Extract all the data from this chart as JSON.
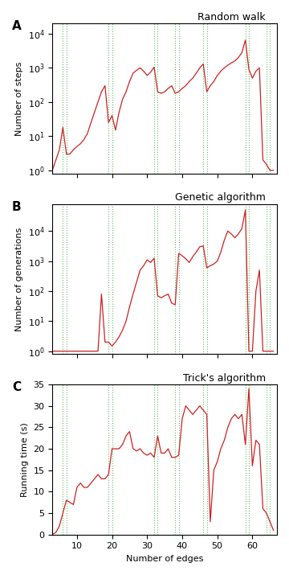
{
  "title_A": "Random walk",
  "title_B": "Genetic algorithm",
  "title_C": "Trick's algorithm",
  "ylabel_A": "Number of steps",
  "ylabel_B": "Number of generations",
  "ylabel_C": "Running time (s)",
  "xlabel": "Number of edges",
  "panel_labels": [
    "A",
    "B",
    "C"
  ],
  "xlim": [
    3,
    67
  ],
  "xticks": [
    10,
    20,
    30,
    40,
    50,
    60
  ],
  "vlines": [
    6,
    7,
    19,
    20,
    32,
    33,
    38,
    39,
    46,
    47,
    58,
    59,
    64,
    65
  ],
  "vline_color": "#66bb66",
  "line_color": "#cc2222",
  "background_color": "#ffffff",
  "ylim_A": [
    0.8,
    20000
  ],
  "ylim_B": [
    0.8,
    80000
  ],
  "ylim_C": [
    0,
    35
  ],
  "yticks_C": [
    0,
    5,
    10,
    15,
    20,
    25,
    30,
    35
  ],
  "rw_x": [
    3,
    4,
    5,
    6,
    7,
    8,
    9,
    10,
    11,
    12,
    13,
    14,
    15,
    16,
    17,
    18,
    19,
    20,
    21,
    22,
    23,
    24,
    25,
    26,
    27,
    28,
    29,
    30,
    31,
    32,
    33,
    34,
    35,
    36,
    37,
    38,
    39,
    40,
    41,
    42,
    43,
    44,
    45,
    46,
    47,
    48,
    49,
    50,
    51,
    52,
    53,
    54,
    55,
    56,
    57,
    58,
    59,
    60,
    61,
    62,
    63,
    64,
    65,
    66
  ],
  "rw_y": [
    1,
    2,
    4,
    18,
    3,
    3,
    4,
    5,
    6,
    8,
    12,
    25,
    50,
    100,
    200,
    300,
    25,
    40,
    15,
    50,
    120,
    200,
    400,
    700,
    850,
    1000,
    800,
    600,
    750,
    1050,
    200,
    180,
    200,
    250,
    300,
    180,
    200,
    250,
    300,
    400,
    500,
    700,
    1000,
    1300,
    200,
    300,
    400,
    600,
    800,
    1000,
    1200,
    1400,
    1600,
    2000,
    2800,
    6500,
    900,
    500,
    800,
    1000,
    2,
    1.5,
    1,
    1
  ],
  "ga_x": [
    3,
    4,
    5,
    6,
    7,
    8,
    9,
    10,
    11,
    12,
    13,
    14,
    15,
    16,
    17,
    18,
    19,
    20,
    21,
    22,
    23,
    24,
    25,
    26,
    27,
    28,
    29,
    30,
    31,
    32,
    33,
    34,
    35,
    36,
    37,
    38,
    39,
    40,
    41,
    42,
    43,
    44,
    45,
    46,
    47,
    48,
    49,
    50,
    51,
    52,
    53,
    54,
    55,
    56,
    57,
    58,
    59,
    60,
    61,
    62,
    63,
    64,
    65,
    66
  ],
  "ga_y": [
    1,
    1,
    1,
    1,
    1,
    1,
    1,
    1,
    1,
    1,
    1,
    1,
    1,
    1,
    80,
    2,
    2,
    1.5,
    2,
    3,
    5,
    10,
    30,
    80,
    200,
    500,
    700,
    1100,
    900,
    1250,
    70,
    60,
    70,
    80,
    40,
    35,
    1800,
    1500,
    1200,
    900,
    1400,
    2000,
    3000,
    3200,
    600,
    700,
    800,
    1000,
    2000,
    5000,
    10000,
    8000,
    6000,
    8000,
    12000,
    50000,
    1,
    1,
    100,
    500,
    1,
    1,
    1,
    1
  ],
  "ta_x": [
    3,
    4,
    5,
    6,
    7,
    8,
    9,
    10,
    11,
    12,
    13,
    14,
    15,
    16,
    17,
    18,
    19,
    20,
    21,
    22,
    23,
    24,
    25,
    26,
    27,
    28,
    29,
    30,
    31,
    32,
    33,
    34,
    35,
    36,
    37,
    38,
    39,
    40,
    41,
    42,
    43,
    44,
    45,
    46,
    47,
    48,
    49,
    50,
    51,
    52,
    53,
    54,
    55,
    56,
    57,
    58,
    59,
    60,
    61,
    62,
    63,
    64,
    65,
    66
  ],
  "ta_y": [
    0,
    0.5,
    2,
    5,
    8,
    7.5,
    7,
    11,
    12,
    11,
    11,
    12,
    13,
    14,
    13,
    13,
    14,
    20,
    20,
    20,
    21,
    23,
    24,
    20,
    19.5,
    20,
    19,
    18.5,
    19,
    18,
    23,
    19,
    19,
    20,
    18,
    18,
    18.5,
    27,
    30,
    29,
    28,
    29,
    30,
    29,
    28,
    3,
    15,
    17,
    20,
    22,
    25,
    27,
    28,
    27,
    28,
    21,
    34,
    16,
    22,
    21,
    6,
    5,
    3,
    1
  ]
}
